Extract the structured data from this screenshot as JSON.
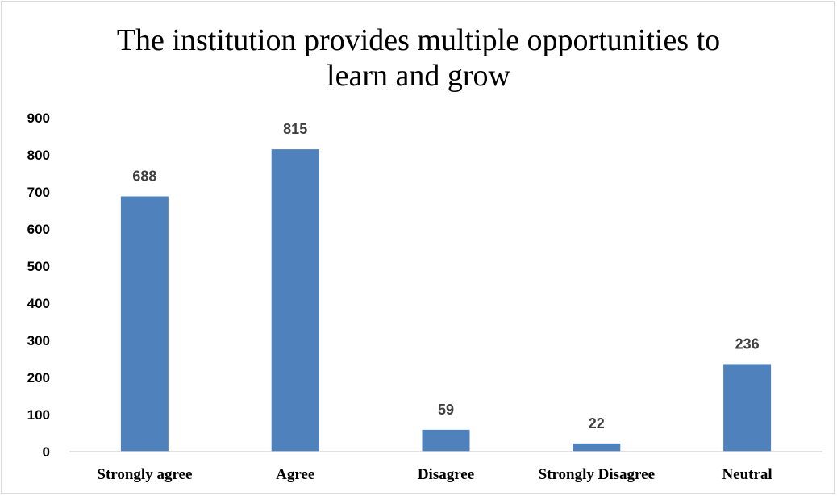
{
  "chart_data": {
    "type": "bar",
    "title_lines": [
      "The institution provides multiple opportunities to",
      "learn and grow"
    ],
    "categories": [
      "Strongly agree",
      "Agree",
      "Disagree",
      "Strongly Disagree",
      "Neutral"
    ],
    "values": [
      688,
      815,
      59,
      22,
      236
    ],
    "data_labels": [
      "688",
      "815",
      "59",
      "22",
      "236"
    ],
    "y_ticks": [
      "0",
      "100",
      "200",
      "300",
      "400",
      "500",
      "600",
      "700",
      "800",
      "900"
    ],
    "ylim": [
      0,
      900
    ],
    "grid": false,
    "legend": "none",
    "colors": {
      "bar": "#4f81bd",
      "axis": "#d9d9d9",
      "label": "#404040"
    }
  }
}
